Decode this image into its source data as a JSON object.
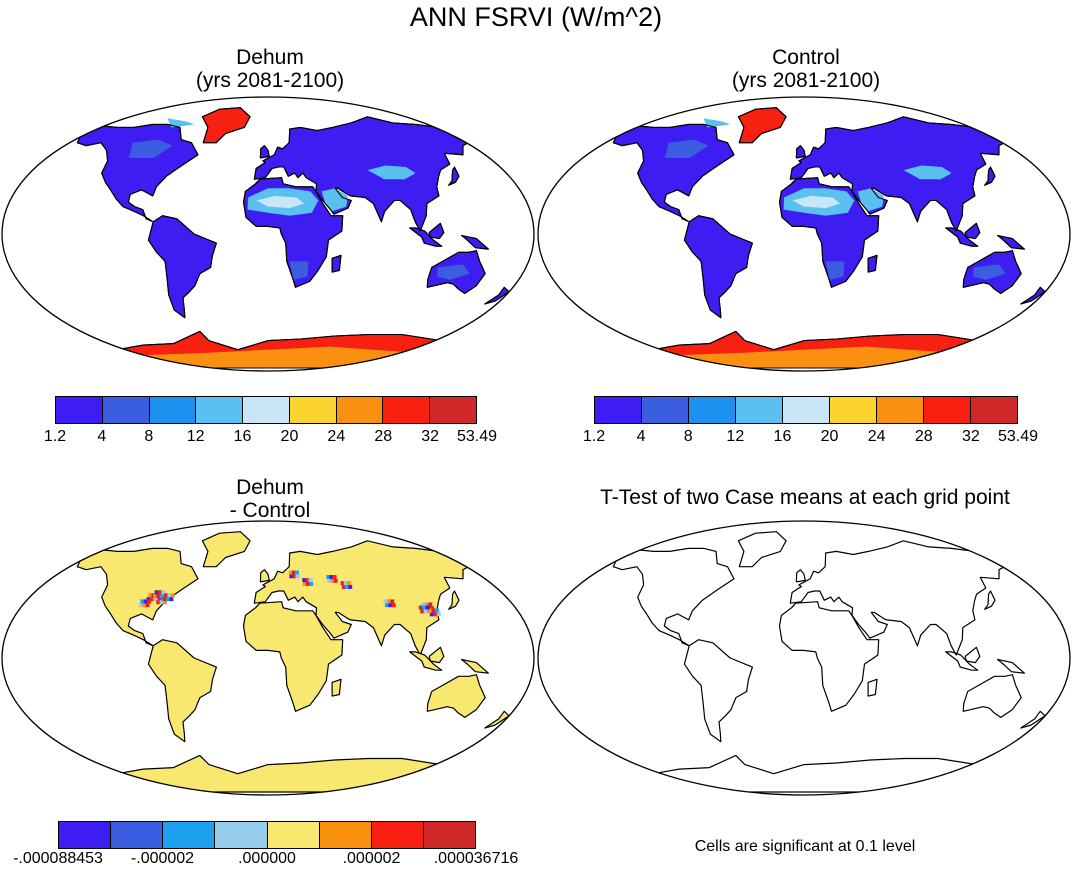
{
  "figure_title": "ANN FSRVI (W/m^2)",
  "panels": {
    "dehum": {
      "title_line1": "Dehum",
      "title_line2": "(yrs 2081-2100)"
    },
    "control": {
      "title_line1": "Control",
      "title_line2": "(yrs 2081-2100)"
    },
    "diff": {
      "title_line1": "Dehum",
      "title_line2": "- Control"
    },
    "ttest": {
      "title": "T-Test of two Case means at each grid point",
      "note": "Cells are significant at 0.1 level"
    }
  },
  "colorbars": {
    "field": {
      "colors": [
        "#3d1df2",
        "#3b5ee0",
        "#1e90f0",
        "#5ac0f0",
        "#c8e6f8",
        "#fcd430",
        "#fa9010",
        "#f82010",
        "#d02828"
      ],
      "labels": [
        "1.2",
        "4",
        "8",
        "12",
        "16",
        "20",
        "24",
        "28",
        "32",
        "53.49"
      ]
    },
    "diff": {
      "colors": [
        "#3d1df2",
        "#3b5ee0",
        "#1ea0f0",
        "#96ccec",
        "#f8e870",
        "#fa9010",
        "#f82010",
        "#d02828"
      ],
      "labels": [
        "-.000088453",
        "-.000002",
        ".000000",
        ".000002",
        ".000036716"
      ]
    }
  },
  "map_colors": {
    "ocean": "#ffffff",
    "land_field": "#3d1df2",
    "land_mid": "#3b5ee0",
    "dry": "#5ac0f0",
    "arid": "#c8e6f8",
    "ice": "#f82010",
    "ice_inner": "#fa9010",
    "diff_land": "#f8e870"
  }
}
